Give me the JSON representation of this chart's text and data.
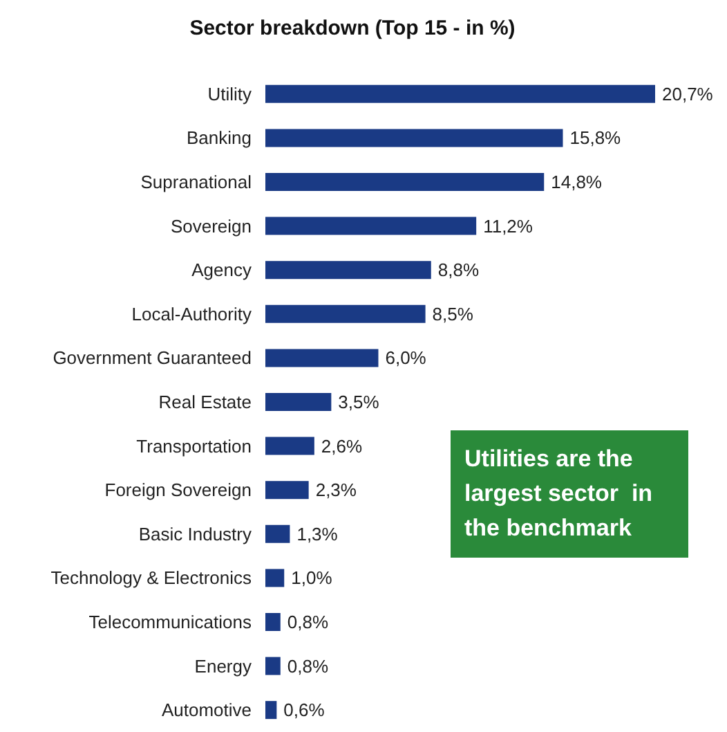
{
  "chart_data": {
    "type": "bar",
    "orientation": "horizontal",
    "title": "Sector breakdown (Top 15 - in %)",
    "categories": [
      "Utility",
      "Banking",
      "Supranational",
      "Sovereign",
      "Agency",
      "Local-Authority",
      "Government Guaranteed",
      "Real Estate",
      "Transportation",
      "Foreign Sovereign",
      "Basic Industry",
      "Technology & Electronics",
      "Telecommunications",
      "Energy",
      "Automotive"
    ],
    "values": [
      20.7,
      15.8,
      14.8,
      11.2,
      8.8,
      8.5,
      6.0,
      3.5,
      2.6,
      2.3,
      1.3,
      1.0,
      0.8,
      0.8,
      0.6
    ],
    "value_labels": [
      "20,7%",
      "15,8%",
      "14,8%",
      "11,2%",
      "8,8%",
      "8,5%",
      "6,0%",
      "3,5%",
      "2,6%",
      "2,3%",
      "1,3%",
      "1,0%",
      "0,8%",
      "0,8%",
      "0,6%"
    ],
    "color": "#1a3a85",
    "annotations": [
      "Utilities are the largest sector  in the benchmark"
    ],
    "tick_labels": "y"
  }
}
